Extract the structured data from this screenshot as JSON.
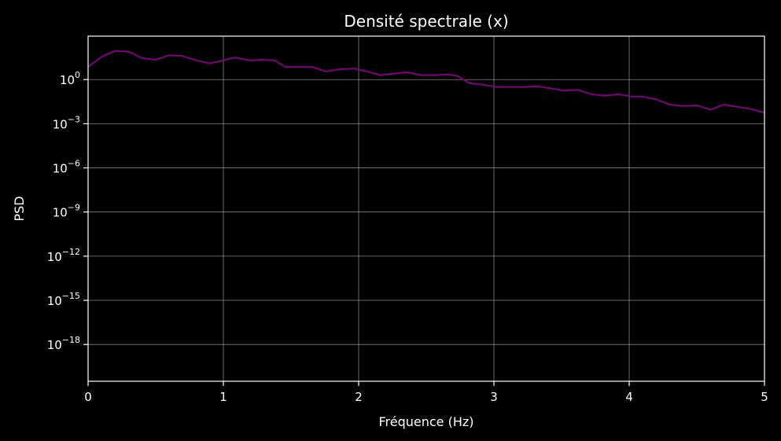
{
  "chart_data": {
    "type": "line",
    "title": "Densité spectrale (x)",
    "xlabel": "Fréquence (Hz)",
    "ylabel": "PSD",
    "xlim": [
      0,
      5
    ],
    "ylim_log10": [
      -20.5,
      2.95
    ],
    "yscale": "log",
    "grid": true,
    "x_ticks": [
      {
        "value": 0,
        "label": "0"
      },
      {
        "value": 1,
        "label": "1"
      },
      {
        "value": 2,
        "label": "2"
      },
      {
        "value": 3,
        "label": "3"
      },
      {
        "value": 4,
        "label": "4"
      },
      {
        "value": 5,
        "label": "5"
      }
    ],
    "y_ticks": [
      {
        "exp": 0,
        "base": "10",
        "sup": "0"
      },
      {
        "exp": -3,
        "base": "10",
        "sup": "−3"
      },
      {
        "exp": -6,
        "base": "10",
        "sup": "−6"
      },
      {
        "exp": -9,
        "base": "10",
        "sup": "−9"
      },
      {
        "exp": -12,
        "base": "10",
        "sup": "−12"
      },
      {
        "exp": -15,
        "base": "10",
        "sup": "−15"
      },
      {
        "exp": -18,
        "base": "10",
        "sup": "−18"
      }
    ],
    "series": [
      {
        "color": "#800080",
        "x": [
          0.0,
          0.1,
          0.2,
          0.3,
          0.4,
          0.5,
          0.6,
          0.7,
          0.8,
          0.9,
          1.0,
          1.08,
          1.2,
          1.3,
          1.38,
          1.46,
          1.56,
          1.66,
          1.76,
          1.86,
          1.96,
          2.06,
          2.16,
          2.26,
          2.36,
          2.46,
          2.56,
          2.66,
          2.73,
          2.82,
          2.92,
          3.02,
          3.12,
          3.22,
          3.32,
          3.42,
          3.52,
          3.62,
          3.72,
          3.82,
          3.92,
          4.02,
          4.1,
          4.2,
          4.3,
          4.4,
          4.5,
          4.6,
          4.7,
          4.8,
          4.9,
          5.0
        ],
        "y_log10": [
          0.85,
          1.55,
          1.95,
          1.9,
          1.45,
          1.35,
          1.65,
          1.6,
          1.3,
          1.1,
          1.3,
          1.5,
          1.3,
          1.35,
          1.3,
          0.85,
          0.85,
          0.85,
          0.55,
          0.7,
          0.75,
          0.55,
          0.3,
          0.4,
          0.5,
          0.3,
          0.3,
          0.35,
          0.25,
          -0.25,
          -0.35,
          -0.5,
          -0.5,
          -0.5,
          -0.45,
          -0.6,
          -0.75,
          -0.7,
          -1.0,
          -1.1,
          -1.0,
          -1.15,
          -1.15,
          -1.35,
          -1.7,
          -1.8,
          -1.75,
          -2.05,
          -1.7,
          -1.85,
          -2.0,
          -2.25
        ]
      }
    ]
  }
}
